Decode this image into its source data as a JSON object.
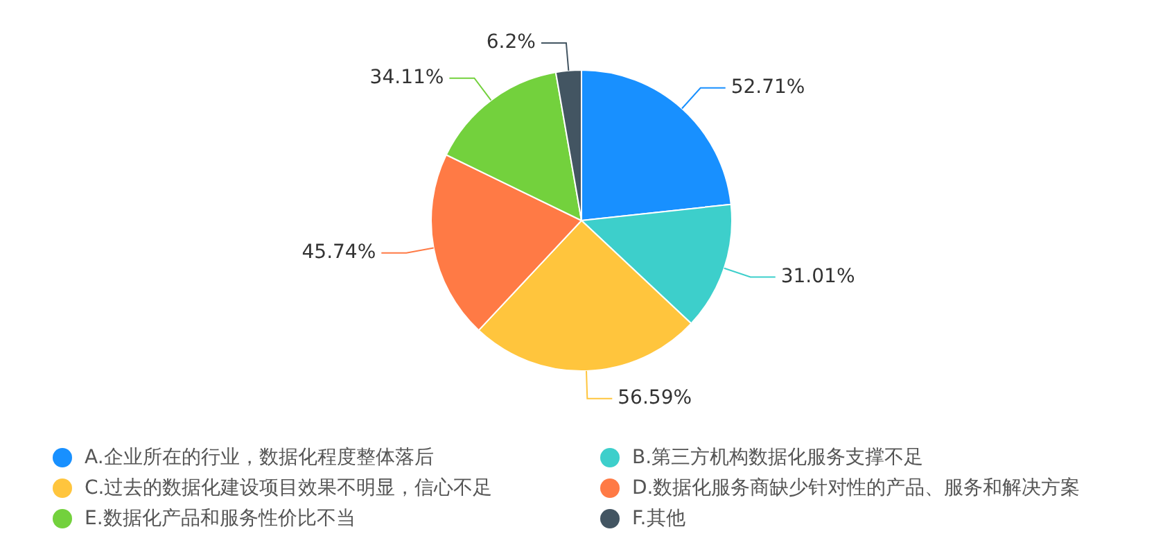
{
  "chart_data": {
    "type": "pie",
    "categories": [
      "A.企业所在的行业，数据化程度整体落后",
      "B.第三方机构数据化服务支撑不足",
      "C.过去的数据化建设项目效果不明显，信心不足",
      "D.数据化服务商缺少针对性的产品、服务和解决方案",
      "E.数据化产品和服务性价比不当",
      "F.其他"
    ],
    "values": [
      52.71,
      31.01,
      56.59,
      45.74,
      34.11,
      6.2
    ],
    "value_labels": [
      "52.71%",
      "31.01%",
      "56.59%",
      "45.74%",
      "34.11%",
      "6.2%"
    ],
    "colors": [
      "#1890ff",
      "#3dcfcb",
      "#ffc53d",
      "#ff7a45",
      "#73d13d",
      "#435562"
    ],
    "legend": "bottom"
  }
}
